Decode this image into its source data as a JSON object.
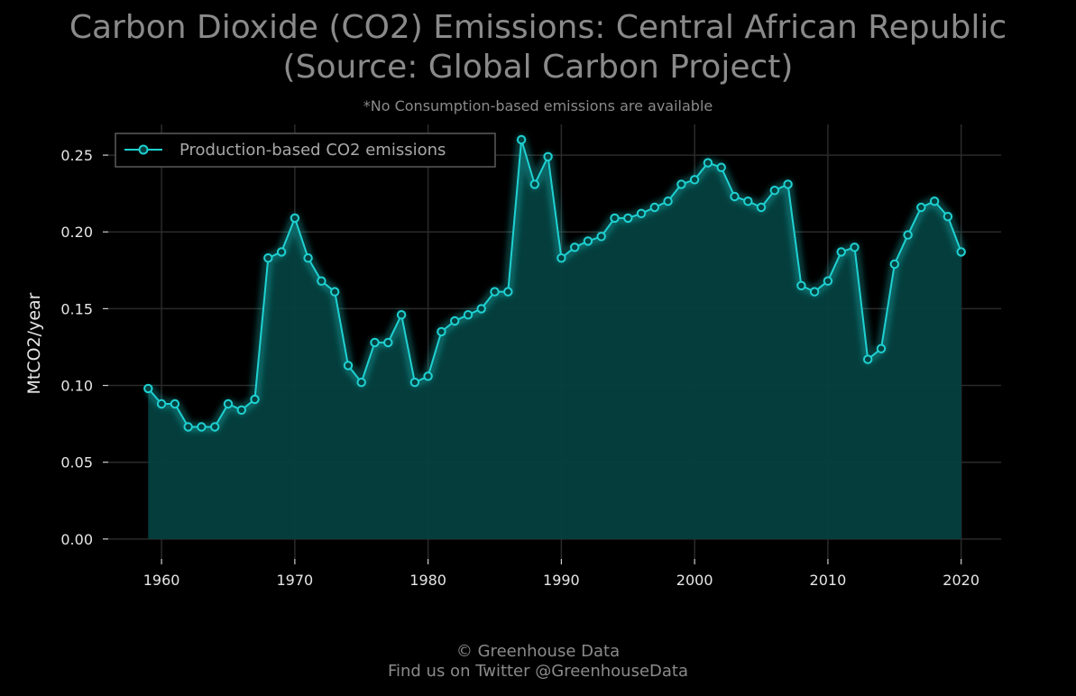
{
  "header": {
    "title_line1": "Carbon Dioxide (CO2) Emissions: Central African Republic",
    "title_line2": "(Source: Global Carbon Project)",
    "subtitle": "*No Consumption-based emissions are available"
  },
  "footer": {
    "line1": "© Greenhouse Data",
    "line2": "Find us on Twitter @GreenhouseData"
  },
  "colors": {
    "background": "#000000",
    "line": "#1fd1d1",
    "fill": "#04403f",
    "grid": "#2a2a2a"
  },
  "chart_data": {
    "type": "area",
    "title": "Carbon Dioxide (CO2) Emissions: Central African Republic (Source: Global Carbon Project)",
    "xlabel": "",
    "ylabel": "MtCO2/year",
    "xlim": [
      1956,
      2023
    ],
    "ylim": [
      -0.013,
      0.27
    ],
    "x_ticks": [
      1960,
      1970,
      1980,
      1990,
      2000,
      2010,
      2020
    ],
    "y_ticks": [
      0.0,
      0.05,
      0.1,
      0.15,
      0.2,
      0.25
    ],
    "y_tick_labels": [
      "0.00",
      "0.05",
      "0.10",
      "0.15",
      "0.20",
      "0.25"
    ],
    "grid": true,
    "legend_position": "top-left",
    "series": [
      {
        "name": "Production-based CO2 emissions",
        "x": [
          1959,
          1960,
          1961,
          1962,
          1963,
          1964,
          1965,
          1966,
          1967,
          1968,
          1969,
          1970,
          1971,
          1972,
          1973,
          1974,
          1975,
          1976,
          1977,
          1978,
          1979,
          1980,
          1981,
          1982,
          1983,
          1984,
          1985,
          1986,
          1987,
          1988,
          1989,
          1990,
          1991,
          1992,
          1993,
          1994,
          1995,
          1996,
          1997,
          1998,
          1999,
          2000,
          2001,
          2002,
          2003,
          2004,
          2005,
          2006,
          2007,
          2008,
          2009,
          2010,
          2011,
          2012,
          2013,
          2014,
          2015,
          2016,
          2017,
          2018,
          2019,
          2020
        ],
        "values": [
          0.098,
          0.088,
          0.088,
          0.073,
          0.073,
          0.073,
          0.088,
          0.084,
          0.091,
          0.183,
          0.187,
          0.209,
          0.183,
          0.168,
          0.161,
          0.113,
          0.102,
          0.128,
          0.128,
          0.146,
          0.102,
          0.106,
          0.135,
          0.142,
          0.146,
          0.15,
          0.161,
          0.161,
          0.26,
          0.231,
          0.249,
          0.183,
          0.19,
          0.194,
          0.197,
          0.209,
          0.209,
          0.212,
          0.216,
          0.22,
          0.231,
          0.234,
          0.245,
          0.242,
          0.223,
          0.22,
          0.216,
          0.227,
          0.231,
          0.165,
          0.161,
          0.168,
          0.187,
          0.19,
          0.117,
          0.124,
          0.179,
          0.198,
          0.216,
          0.22,
          0.21,
          0.187
        ]
      }
    ]
  }
}
